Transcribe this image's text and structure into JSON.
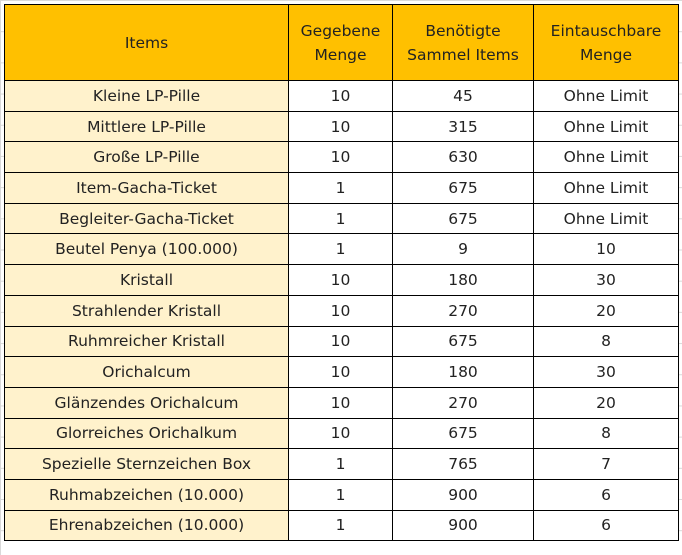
{
  "colors": {
    "header_bg": "#FFC000",
    "item_col_bg": "#FFF2CC"
  },
  "headers": [
    "Items",
    "Gegebene Menge",
    "Benötigte Sammel Items",
    "Eintauschbare Menge"
  ],
  "headers_lines": [
    [
      "Items"
    ],
    [
      "Gegebene",
      "Menge"
    ],
    [
      "Benötigte",
      "Sammel Items"
    ],
    [
      "Eintauschbare",
      "Menge"
    ]
  ],
  "rows": [
    [
      "Kleine LP-Pille",
      "10",
      "45",
      "Ohne Limit"
    ],
    [
      "Mittlere LP-Pille",
      "10",
      "315",
      "Ohne Limit"
    ],
    [
      "Große LP-Pille",
      "10",
      "630",
      "Ohne Limit"
    ],
    [
      "Item-Gacha-Ticket",
      "1",
      "675",
      "Ohne Limit"
    ],
    [
      "Begleiter-Gacha-Ticket",
      "1",
      "675",
      "Ohne Limit"
    ],
    [
      "Beutel Penya (100.000)",
      "1",
      "9",
      "10"
    ],
    [
      "Kristall",
      "10",
      "180",
      "30"
    ],
    [
      "Strahlender Kristall",
      "10",
      "270",
      "20"
    ],
    [
      "Ruhmreicher Kristall",
      "10",
      "675",
      "8"
    ],
    [
      "Orichalcum",
      "10",
      "180",
      "30"
    ],
    [
      "Glänzendes Orichalcum",
      "10",
      "270",
      "20"
    ],
    [
      "Glorreiches Orichalkum",
      "10",
      "675",
      "8"
    ],
    [
      "Spezielle Sternzeichen Box",
      "1",
      "765",
      "7"
    ],
    [
      "Ruhmabzeichen (10.000)",
      "1",
      "900",
      "6"
    ],
    [
      "Ehrenabzeichen (10.000)",
      "1",
      "900",
      "6"
    ]
  ]
}
